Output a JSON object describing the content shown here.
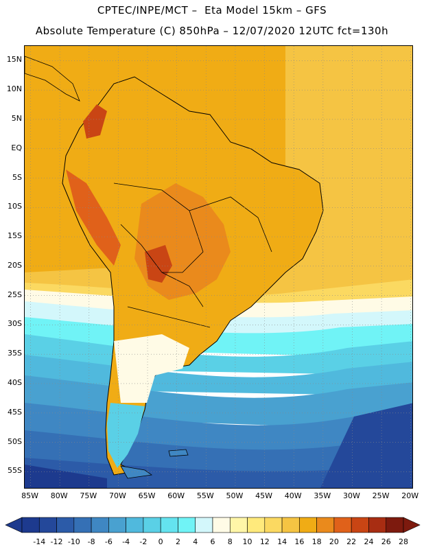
{
  "header": {
    "line1": "CPTEC/INPE/MCT –  Eta Model 15km – GFS",
    "line2": "Absolute Temperature (C) 850hPa – 12/07/2020 12UTC fct=130h"
  },
  "map": {
    "lat_labels": [
      "15N",
      "10N",
      "5N",
      "EQ",
      "5S",
      "10S",
      "15S",
      "20S",
      "25S",
      "30S",
      "35S",
      "40S",
      "45S",
      "50S",
      "55S"
    ],
    "lon_labels": [
      "85W",
      "80W",
      "75W",
      "70W",
      "65W",
      "60W",
      "55W",
      "50W",
      "45W",
      "40W",
      "35W",
      "30W",
      "25W",
      "20W"
    ],
    "lat_range": [
      17.5,
      -58
    ],
    "lon_range": [
      -86,
      -19.5
    ]
  },
  "colorbar": {
    "labels": [
      "-14",
      "-12",
      "-10",
      "-8",
      "-6",
      "-4",
      "-2",
      "0",
      "2",
      "4",
      "6",
      "8",
      "10",
      "12",
      "14",
      "16",
      "18",
      "20",
      "22",
      "24",
      "26",
      "28"
    ],
    "colors": [
      "#1d3a8e",
      "#24489a",
      "#2c5ba8",
      "#3570b5",
      "#3f87c3",
      "#49a1d0",
      "#50b9dd",
      "#5ad0e6",
      "#64e3ef",
      "#70f3f6",
      "#d3f7fb",
      "#fffbe6",
      "#fff6a8",
      "#ffea7c",
      "#fbd961",
      "#f5c443",
      "#f0ac15",
      "#ea8a1c",
      "#e0611a",
      "#c94514",
      "#a82d12",
      "#7d1a0e"
    ]
  }
}
